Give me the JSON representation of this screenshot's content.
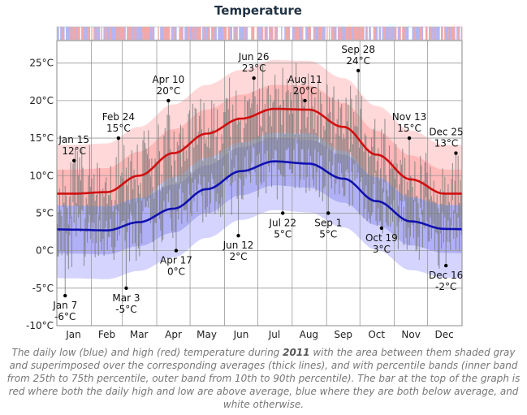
{
  "chart_data": {
    "type": "line",
    "title": "Temperature",
    "y_ticks": [
      "25°C",
      "20°C",
      "15°C",
      "10°C",
      "5°C",
      "0°C",
      "-5°C",
      "-10°C"
    ],
    "ylim": [
      -10,
      28
    ],
    "months": [
      "Jan",
      "Feb",
      "Mar",
      "Apr",
      "May",
      "Jun",
      "Jul",
      "Aug",
      "Sep",
      "Oct",
      "Nov",
      "Dec"
    ],
    "grid": true,
    "series": [
      {
        "name": "average high",
        "color": "#d01010",
        "values": [
          7.6,
          7.8,
          10.0,
          13.0,
          15.6,
          17.6,
          18.9,
          18.8,
          16.5,
          12.8,
          9.5,
          7.6
        ]
      },
      {
        "name": "average low",
        "color": "#1010b0",
        "values": [
          2.8,
          2.7,
          3.8,
          5.6,
          8.2,
          10.6,
          11.9,
          11.6,
          9.6,
          6.6,
          3.9,
          2.9
        ]
      }
    ],
    "annotations": [
      {
        "day": 15,
        "value": 12,
        "date": "Jan 15",
        "temp": "12°C",
        "type": "high"
      },
      {
        "day": 7,
        "value": -6,
        "date": "Jan 7",
        "temp": "-6°C",
        "type": "low"
      },
      {
        "day": 55,
        "value": 15,
        "date": "Feb 24",
        "temp": "15°C",
        "type": "high"
      },
      {
        "day": 62,
        "value": -5,
        "date": "Mar 3",
        "temp": "-5°C",
        "type": "low"
      },
      {
        "day": 100,
        "value": 20,
        "date": "Apr 10",
        "temp": "20°C",
        "type": "high"
      },
      {
        "day": 107,
        "value": 0,
        "date": "Apr 17",
        "temp": "0°C",
        "type": "low"
      },
      {
        "day": 163,
        "value": 2,
        "date": "Jun 12",
        "temp": "2°C",
        "type": "low"
      },
      {
        "day": 177,
        "value": 23,
        "date": "Jun 26",
        "temp": "23°C",
        "type": "high"
      },
      {
        "day": 203,
        "value": 5,
        "date": "Jul 22",
        "temp": "5°C",
        "type": "low"
      },
      {
        "day": 223,
        "value": 20,
        "date": "Aug 11",
        "temp": "20°C",
        "type": "high"
      },
      {
        "day": 244,
        "value": 5,
        "date": "Sep 1",
        "temp": "5°C",
        "type": "low"
      },
      {
        "day": 271,
        "value": 24,
        "date": "Sep 28",
        "temp": "24°C",
        "type": "high"
      },
      {
        "day": 292,
        "value": 3,
        "date": "Oct 19",
        "temp": "3°C",
        "type": "low"
      },
      {
        "day": 317,
        "value": 15,
        "date": "Nov 13",
        "temp": "15°C",
        "type": "high"
      },
      {
        "day": 350,
        "value": -2,
        "date": "Dec 16",
        "temp": "-2°C",
        "type": "low"
      },
      {
        "day": 359,
        "value": 13,
        "date": "Dec 25",
        "temp": "13°C",
        "type": "high"
      }
    ]
  },
  "caption": {
    "part1": "The daily low (blue) and high (red) temperature during ",
    "year": "2011",
    "part2": " with the area between them shaded gray and superimposed over the corresponding averages (thick lines), and with percentile bands (inner band from 25th to 75th percentile, outer band from 10th to 90th percentile). The bar at the top of the graph is red where both the daily high and low are above average, blue where they are both below average, and white otherwise."
  }
}
